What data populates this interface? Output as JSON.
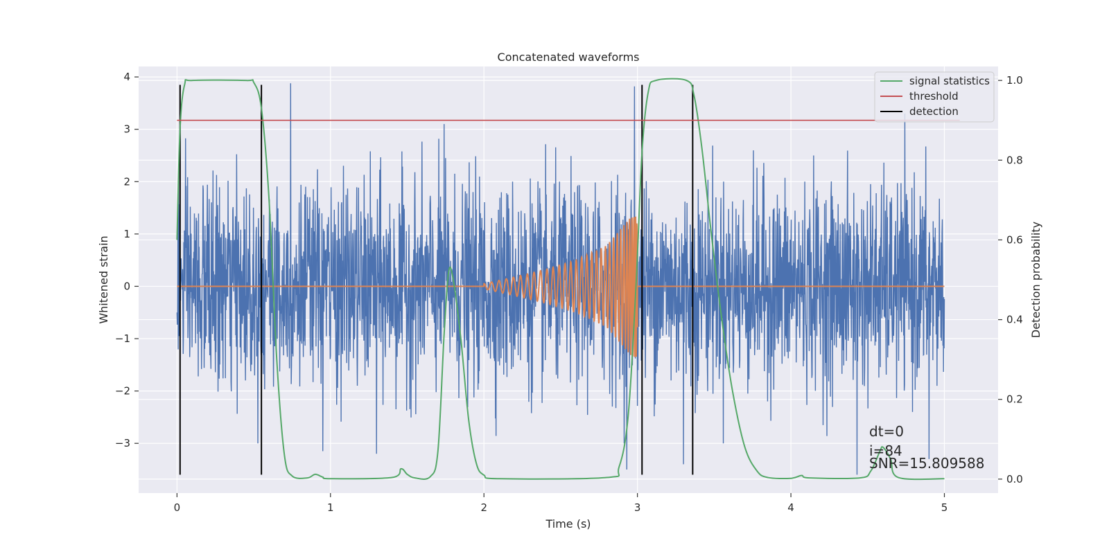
{
  "chart_data": {
    "type": "line",
    "title": "Concatenated waveforms",
    "xlabel": "Time (s)",
    "ylabel": "Whitened strain",
    "ylabel_right": "Detection probability",
    "xlim": [
      -0.25,
      5.35
    ],
    "ylim": [
      -3.95,
      4.2
    ],
    "ylim_right": [
      -0.035,
      1.035
    ],
    "xticks": [
      0,
      1,
      2,
      3,
      4,
      5
    ],
    "yticks": [
      -3,
      -2,
      -1,
      0,
      1,
      2,
      3,
      4
    ],
    "yticks_right": [
      0.0,
      0.2,
      0.4,
      0.6,
      0.8,
      1.0
    ],
    "ytick_labels": [
      "−3",
      "−2",
      "−1",
      "0",
      "1",
      "2",
      "3",
      "4"
    ],
    "ytick_right_labels": [
      "0.0",
      "0.2",
      "0.4",
      "0.6",
      "0.8",
      "1.0"
    ],
    "grid": true,
    "legend_position": "top-right",
    "colors": {
      "strain": "#4c72b0",
      "template": "#dd8452",
      "signal": "#55a868",
      "threshold": "#c44e52",
      "detection": "#000000",
      "background": "#eaeaf2",
      "grid": "#ffffff"
    },
    "series": [
      {
        "name": "whitened strain",
        "axis": "left",
        "description": "dense noise, approx. std 1.0 over 0-5 s, peaks up to about 3.9 and down to about -3.5",
        "x_range": [
          0,
          5
        ],
        "sample_points": [
          [
            0.0,
            -0.5
          ],
          [
            0.01,
            2.0
          ],
          [
            0.74,
            3.88
          ],
          [
            0.95,
            -3.15
          ],
          [
            1.3,
            -3.2
          ],
          [
            1.74,
            3.1
          ],
          [
            2.93,
            -3.5
          ],
          [
            2.98,
            3.82
          ],
          [
            3.3,
            -3.4
          ],
          [
            4.43,
            -3.6
          ],
          [
            4.9,
            -3.3
          ]
        ]
      },
      {
        "name": "injected waveform",
        "axis": "left",
        "description": "zero except chirp from 2.0 s to 3.0 s with rising amplitude and frequency",
        "points": [
          [
            0.0,
            0.0
          ],
          [
            2.0,
            0.0
          ],
          [
            2.2,
            0.18
          ],
          [
            2.4,
            0.32
          ],
          [
            2.6,
            0.5
          ],
          [
            2.8,
            0.78
          ],
          [
            2.95,
            1.3
          ],
          [
            3.0,
            0.0
          ],
          [
            5.0,
            0.0
          ]
        ]
      },
      {
        "name": "signal statistics",
        "axis": "right",
        "points": [
          [
            0.0,
            0.6
          ],
          [
            0.02,
            0.88
          ],
          [
            0.05,
            0.99
          ],
          [
            0.1,
            1.0
          ],
          [
            0.45,
            1.0
          ],
          [
            0.5,
            0.995
          ],
          [
            0.55,
            0.93
          ],
          [
            0.6,
            0.7
          ],
          [
            0.65,
            0.3
          ],
          [
            0.7,
            0.06
          ],
          [
            0.75,
            0.008
          ],
          [
            0.85,
            0.003
          ],
          [
            0.9,
            0.012
          ],
          [
            0.95,
            0.005
          ],
          [
            1.0,
            0.001
          ],
          [
            1.4,
            0.004
          ],
          [
            1.46,
            0.026
          ],
          [
            1.5,
            0.012
          ],
          [
            1.55,
            0.003
          ],
          [
            1.65,
            0.006
          ],
          [
            1.7,
            0.07
          ],
          [
            1.74,
            0.36
          ],
          [
            1.77,
            0.52
          ],
          [
            1.8,
            0.5
          ],
          [
            1.85,
            0.35
          ],
          [
            1.9,
            0.15
          ],
          [
            1.95,
            0.04
          ],
          [
            2.0,
            0.01
          ],
          [
            2.1,
            0.001
          ],
          [
            2.8,
            0.004
          ],
          [
            2.88,
            0.03
          ],
          [
            2.94,
            0.16
          ],
          [
            2.99,
            0.48
          ],
          [
            3.03,
            0.82
          ],
          [
            3.07,
            0.97
          ],
          [
            3.12,
            1.0
          ],
          [
            3.32,
            1.0
          ],
          [
            3.37,
            0.96
          ],
          [
            3.42,
            0.83
          ],
          [
            3.48,
            0.62
          ],
          [
            3.55,
            0.4
          ],
          [
            3.62,
            0.22
          ],
          [
            3.7,
            0.08
          ],
          [
            3.78,
            0.02
          ],
          [
            3.85,
            0.004
          ],
          [
            4.0,
            0.002
          ],
          [
            4.07,
            0.009
          ],
          [
            4.12,
            0.003
          ],
          [
            4.45,
            0.003
          ],
          [
            4.52,
            0.02
          ],
          [
            4.58,
            0.07
          ],
          [
            4.6,
            0.08
          ],
          [
            4.65,
            0.05
          ],
          [
            4.7,
            0.004
          ],
          [
            5.0,
            0.001
          ]
        ]
      },
      {
        "name": "threshold",
        "axis": "right",
        "points": [
          [
            0.0,
            0.9
          ],
          [
            5.1,
            0.9
          ]
        ]
      },
      {
        "name": "detection",
        "axis": "left",
        "segments": [
          [
            0.02,
            -3.6,
            0.02,
            3.85
          ],
          [
            0.55,
            -3.6,
            0.55,
            3.85
          ],
          [
            3.03,
            -3.6,
            3.03,
            3.85
          ],
          [
            3.36,
            -3.6,
            3.36,
            3.85
          ]
        ]
      }
    ],
    "legend": [
      "signal statistics",
      "threshold",
      "detection"
    ],
    "annotations": [
      "dt=0",
      "i=84",
      "SNR=15.809588"
    ]
  }
}
